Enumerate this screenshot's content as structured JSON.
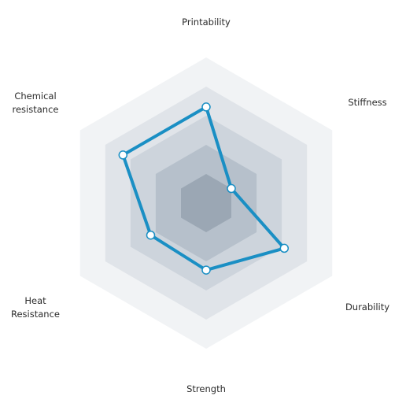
{
  "chart_data": {
    "type": "radar",
    "axes": [
      {
        "id": "printability",
        "lines": [
          "Printability"
        ]
      },
      {
        "id": "stiffness",
        "lines": [
          "Stiffness"
        ]
      },
      {
        "id": "durability",
        "lines": [
          "Durability"
        ]
      },
      {
        "id": "strength",
        "lines": [
          "Strength"
        ]
      },
      {
        "id": "heat-resistance",
        "lines": [
          "Heat",
          "Resistance"
        ]
      },
      {
        "id": "chemical-resistance",
        "lines": [
          "Chemical",
          "resistance"
        ]
      }
    ],
    "levels": 5,
    "max": 5,
    "values": [
      3.3,
      1.0,
      3.1,
      2.3,
      2.2,
      3.3
    ],
    "colors": {
      "line": "#1a8fc4",
      "marker_fill": "#ffffff",
      "rings": [
        "#f1f3f5",
        "#e0e4e9",
        "#cdd4dc",
        "#b6c0cb",
        "#9ba7b4"
      ]
    }
  }
}
